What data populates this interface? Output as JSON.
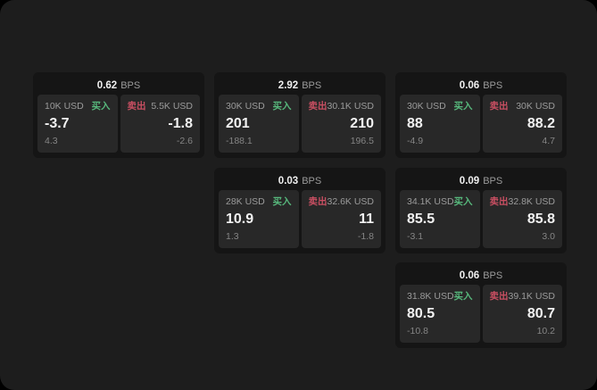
{
  "window": {
    "labels": {
      "buy": "买入",
      "sell": "卖出",
      "bps_unit": "BPS"
    },
    "colors": {
      "accent_green": "#57b87c",
      "accent_red": "#c94f62",
      "window_bg": "#1d1d1d",
      "card_bg": "#151515",
      "panel_bg": "#282828"
    },
    "cards": [
      {
        "bps": "0.62",
        "col": 0,
        "row": 0,
        "buy": {
          "amount": "10K USD",
          "value": "-3.7",
          "secondary": "4.3"
        },
        "sell": {
          "amount": "5.5K USD",
          "value": "-1.8",
          "secondary": "-2.6"
        }
      },
      {
        "bps": "2.92",
        "col": 1,
        "row": 0,
        "buy": {
          "amount": "30K USD",
          "value": "201",
          "secondary": "-188.1"
        },
        "sell": {
          "amount": "30.1K USD",
          "value": "210",
          "secondary": "196.5"
        }
      },
      {
        "bps": "0.06",
        "col": 2,
        "row": 0,
        "buy": {
          "amount": "30K USD",
          "value": "88",
          "secondary": "-4.9"
        },
        "sell": {
          "amount": "30K USD",
          "value": "88.2",
          "secondary": "4.7"
        }
      },
      {
        "bps": "0.03",
        "col": 1,
        "row": 1,
        "buy": {
          "amount": "28K USD",
          "value": "10.9",
          "secondary": "1.3"
        },
        "sell": {
          "amount": "32.6K USD",
          "value": "11",
          "secondary": "-1.8"
        }
      },
      {
        "bps": "0.09",
        "col": 2,
        "row": 1,
        "buy": {
          "amount": "34.1K USD",
          "value": "85.5",
          "secondary": "-3.1"
        },
        "sell": {
          "amount": "32.8K USD",
          "value": "85.8",
          "secondary": "3.0"
        }
      },
      {
        "bps": "0.06",
        "col": 2,
        "row": 2,
        "buy": {
          "amount": "31.8K USD",
          "value": "80.5",
          "secondary": "-10.8"
        },
        "sell": {
          "amount": "39.1K USD",
          "value": "80.7",
          "secondary": "10.2"
        }
      }
    ]
  }
}
